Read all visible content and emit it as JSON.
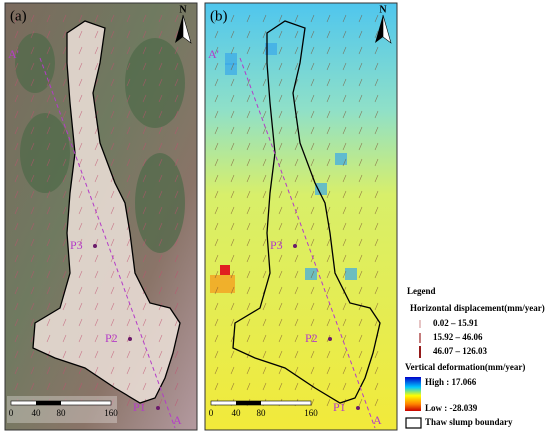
{
  "panels": [
    {
      "label": "(a)",
      "north": "N",
      "section": {
        "start": "A",
        "end": "A'"
      },
      "points": [
        "P1",
        "P2",
        "P3"
      ],
      "scale": [
        "0",
        "40",
        "80",
        "160"
      ]
    },
    {
      "label": "(b)",
      "north": "N",
      "section": {
        "start": "A",
        "end": "A'"
      },
      "points": [
        "P1",
        "P2",
        "P3"
      ],
      "scale": [
        "0",
        "40",
        "80",
        "160"
      ]
    }
  ],
  "legend": {
    "title": "Legend",
    "horizontal": {
      "title": "Horizontal displacement(mm/year)",
      "classes": [
        "0.02 – 15.91",
        "15.92 – 46.06",
        "46.07 – 126.03"
      ]
    },
    "vertical": {
      "title": "Vertical deformation(mm/year)",
      "high": "High : 17.066",
      "low": "Low : -28.039"
    },
    "boundary": "Thaw slump boundary"
  }
}
